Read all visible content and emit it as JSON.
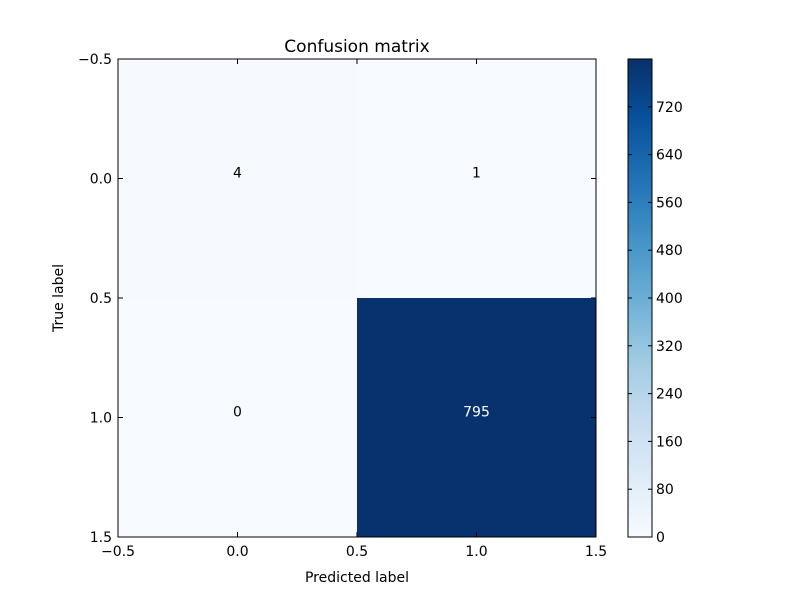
{
  "chart_data": {
    "type": "heatmap",
    "title": "Confusion matrix",
    "xlabel": "Predicted label",
    "ylabel": "True label",
    "matrix": [
      [
        4,
        1
      ],
      [
        0,
        795
      ]
    ],
    "cell_labels": [
      [
        "4",
        "1"
      ],
      [
        "0",
        "795"
      ]
    ],
    "xlim": [
      -0.5,
      1.5
    ],
    "ylim": [
      -0.5,
      1.5
    ],
    "y_inverted": true,
    "x_ticks": [
      "−0.5",
      "0.0",
      "0.5",
      "1.0",
      "1.5"
    ],
    "y_ticks": [
      "−0.5",
      "0.0",
      "0.5",
      "1.0",
      "1.5"
    ],
    "colormap": "Blues",
    "colorbar": {
      "range": [
        0,
        800
      ],
      "ticks": [
        "0",
        "80",
        "160",
        "240",
        "320",
        "400",
        "480",
        "560",
        "640",
        "720"
      ],
      "tick_values": [
        0,
        80,
        160,
        240,
        320,
        400,
        480,
        560,
        640,
        720
      ]
    },
    "colors": {
      "low": "#f7fbff",
      "high": "#08306b",
      "text_dark": "#000000",
      "text_light": "#ffffff"
    }
  }
}
